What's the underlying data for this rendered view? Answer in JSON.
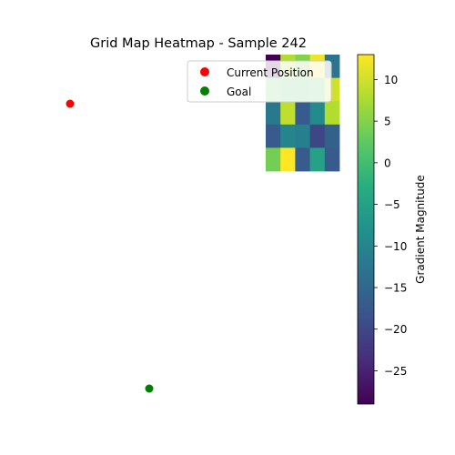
{
  "chart_data": {
    "type": "heatmap",
    "title": "Grid Map Heatmap - Sample 242",
    "grid": [
      [
        -29,
        8,
        5,
        12,
        -13
      ],
      [
        3,
        1,
        1,
        2,
        10
      ],
      [
        -12,
        9,
        -17,
        -9,
        8
      ],
      [
        -17,
        -10,
        -11,
        -20,
        -16
      ],
      [
        4,
        13,
        -17,
        -5,
        -17
      ]
    ],
    "colorbar": {
      "label": "Gradient Magnitude",
      "range": [
        -29,
        13
      ],
      "ticks": [
        10,
        5,
        0,
        -5,
        -10,
        -15,
        -20,
        -25
      ],
      "colormap": "viridis"
    },
    "markers": [
      {
        "name": "Current Position",
        "color": "#ff0000"
      },
      {
        "name": "Goal",
        "color": "#008000"
      }
    ],
    "legend_position": "top-right"
  }
}
